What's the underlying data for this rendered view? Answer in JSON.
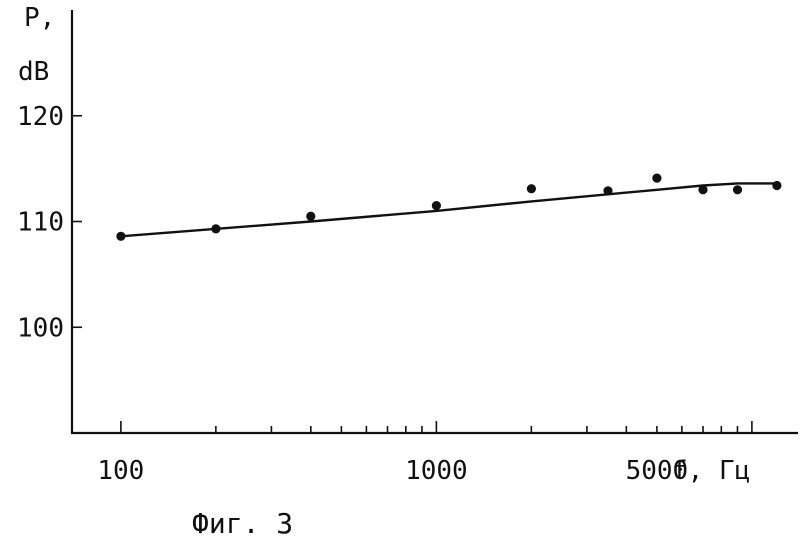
{
  "chart_data": {
    "type": "scatter",
    "x_scale": "log",
    "ylabel": [
      "P,",
      "dB"
    ],
    "xlabel": "f, Гц",
    "ylim": [
      90,
      130
    ],
    "xlim": [
      70,
      14000
    ],
    "y_ticks": [
      120,
      110,
      100
    ],
    "x_tick_labels": [
      {
        "value": 100,
        "label": "100"
      },
      {
        "value": 1000,
        "label": "1000"
      },
      {
        "value": 5000,
        "label": "5000"
      }
    ],
    "series": [
      {
        "type": "scatter",
        "x": [
          100,
          200,
          400,
          1000,
          2000,
          3500,
          5000,
          7000,
          9000,
          12000
        ],
        "y": [
          108.6,
          109.3,
          110.5,
          111.5,
          113.1,
          112.9,
          114.1,
          113.0,
          113.0,
          113.4
        ]
      },
      {
        "type": "line",
        "x": [
          100,
          400,
          1000,
          2000,
          5000,
          7000,
          9000,
          12000
        ],
        "y": [
          108.6,
          110.0,
          111.0,
          111.9,
          113.0,
          113.4,
          113.6,
          113.6
        ]
      }
    ],
    "grid": false,
    "caption": "Фиг. 3"
  }
}
